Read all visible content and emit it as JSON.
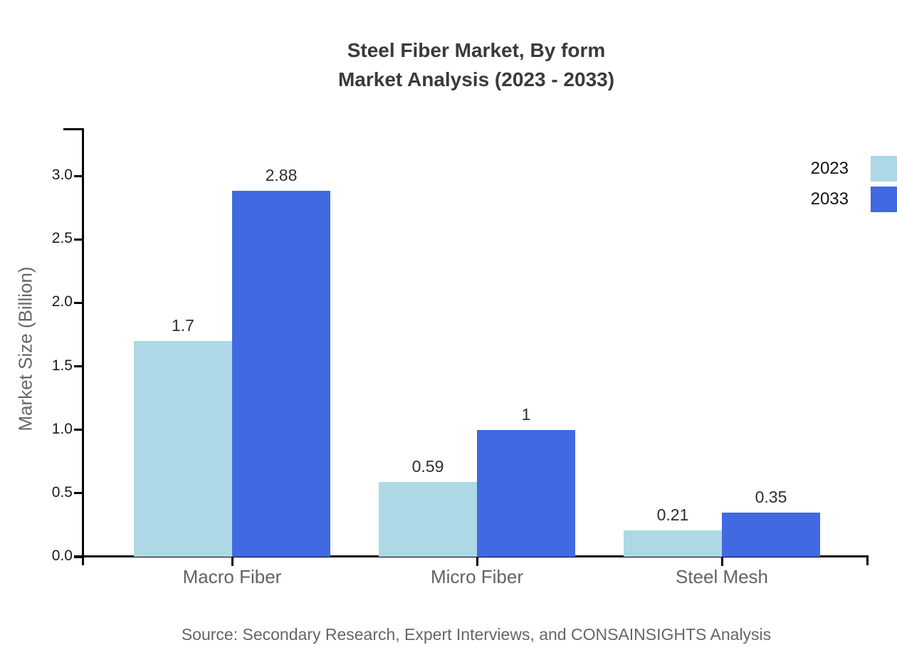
{
  "page": {
    "background": "#ffffff"
  },
  "chart_data": {
    "type": "bar",
    "title_line1": "Steel Fiber Market, By form",
    "title_line2": "Market Analysis (2023 - 2033)",
    "ylabel": "Market Size (Billion)",
    "categories": [
      "Macro Fiber",
      "Micro Fiber",
      "Steel Mesh"
    ],
    "series": [
      {
        "name": "2023",
        "color": "#ADD8E6",
        "values": [
          1.7,
          0.59,
          0.21
        ],
        "labels": [
          "1.7",
          "0.59",
          "0.21"
        ]
      },
      {
        "name": "2033",
        "color": "#4169E1",
        "values": [
          2.88,
          1.0,
          0.35
        ],
        "labels": [
          "2.88",
          "1",
          "0.35"
        ]
      }
    ],
    "yticks": [
      {
        "value": 0.0,
        "label": "0.0"
      },
      {
        "value": 0.5,
        "label": "0.5"
      },
      {
        "value": 1.0,
        "label": "1.0"
      },
      {
        "value": 1.5,
        "label": "1.5"
      },
      {
        "value": 2.0,
        "label": "2.0"
      },
      {
        "value": 2.5,
        "label": "2.5"
      },
      {
        "value": 3.0,
        "label": "3.0"
      }
    ],
    "ylim": [
      0,
      3.375
    ],
    "grid": false,
    "legend_position": "top-right",
    "axis_color": "#000000",
    "source_note": "Source: Secondary Research, Expert Interviews, and CONSAINSIGHTS Analysis"
  }
}
